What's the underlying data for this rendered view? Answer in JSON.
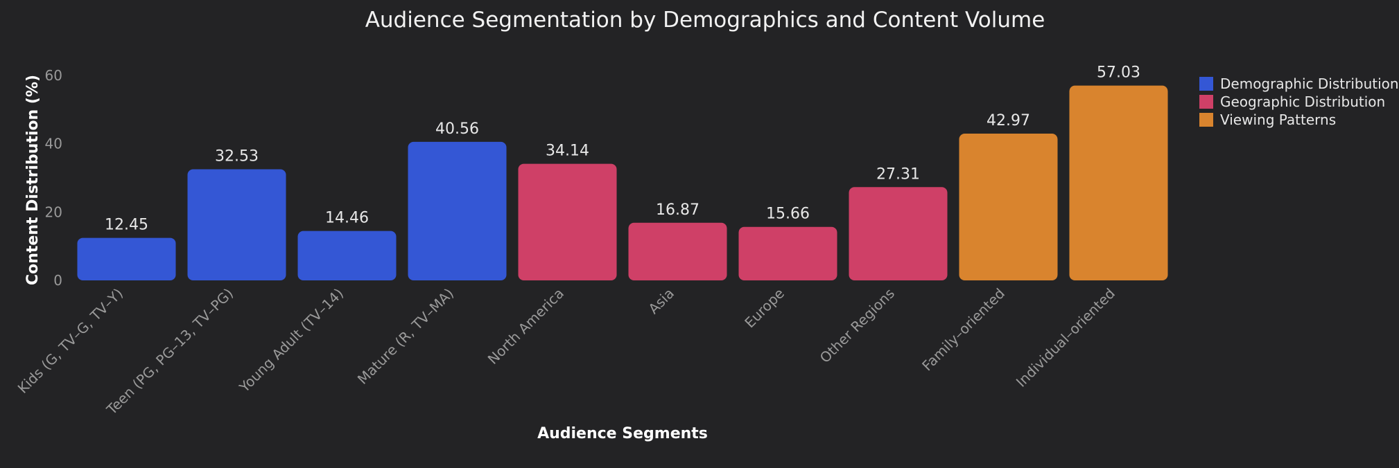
{
  "chart_data": {
    "type": "bar",
    "title": "Audience Segmentation by Demographics and Content Volume",
    "xlabel": "Audience Segments",
    "ylabel": "Content Distribution (%)",
    "ylim": [
      0,
      60
    ],
    "yticks": [
      0,
      20,
      40,
      60
    ],
    "grid": false,
    "legend_position": "top-right",
    "categories": [
      "Kids (G, TV–G, TV–Y)",
      "Teen (PG, PG–13, TV–PG)",
      "Young Adult (TV–14)",
      "Mature (R, TV–MA)",
      "North America",
      "Asia",
      "Europe",
      "Other Regions",
      "Family–oriented",
      "Individual–oriented"
    ],
    "values": [
      12.45,
      32.53,
      14.46,
      40.56,
      34.14,
      16.87,
      15.66,
      27.31,
      42.97,
      57.03
    ],
    "data_labels": [
      "12.45",
      "32.53",
      "14.46",
      "40.56",
      "34.14",
      "16.87",
      "15.66",
      "27.31",
      "42.97",
      "57.03"
    ],
    "bar_group": [
      0,
      0,
      0,
      0,
      1,
      1,
      1,
      1,
      2,
      2
    ],
    "groups": [
      {
        "name": "Demographic Distribution",
        "color": "#3457d5"
      },
      {
        "name": "Geographic Distribution",
        "color": "#cf4067"
      },
      {
        "name": "Viewing Patterns",
        "color": "#d9842e"
      }
    ]
  }
}
